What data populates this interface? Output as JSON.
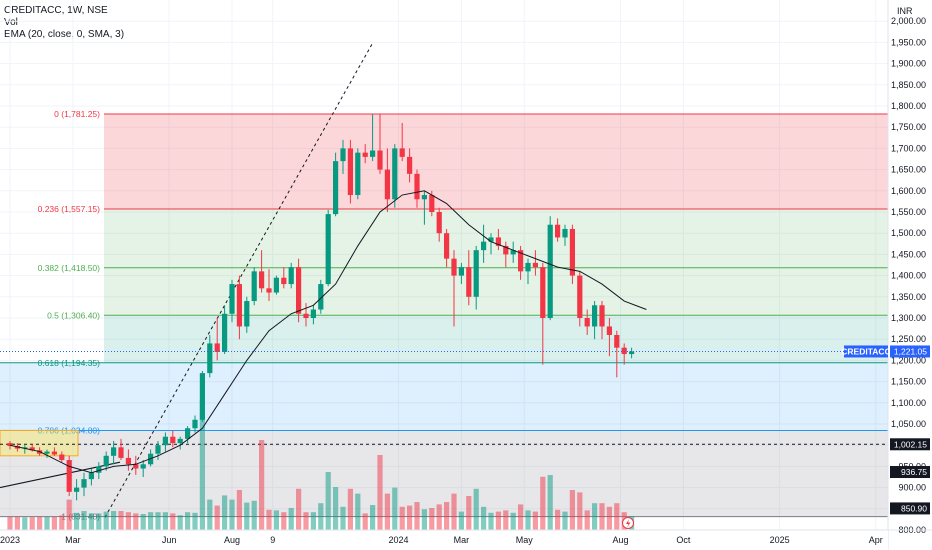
{
  "legend": {
    "symbol_line": "CREDITACC, 1W, NSE",
    "vol_line": "Vol",
    "ema_line": "EMA (20, close, 0, SMA, 3)"
  },
  "chart_data": {
    "type": "candlestick",
    "currency": "INR",
    "ylim": [
      800,
      2050
    ],
    "y_ticks": [
      800,
      850,
      900,
      950,
      1000,
      1050,
      1100,
      1150,
      1200,
      1250,
      1300,
      1350,
      1400,
      1450,
      1500,
      1550,
      1600,
      1650,
      1700,
      1750,
      1800,
      1850,
      1900,
      1950,
      2000
    ],
    "y_tick_labels": [
      "800.00",
      "850.00",
      "900.00",
      "950.00",
      "1,000.00",
      "1,050.00",
      "1,100.00",
      "1,150.00",
      "1,200.00",
      "1,250.00",
      "1,300.00",
      "1,350.00",
      "1,400.00",
      "1,450.00",
      "1,500.00",
      "1,550.00",
      "1,600.00",
      "1,650.00",
      "1,700.00",
      "1,750.00",
      "1,800.00",
      "1,850.00",
      "1,900.00",
      "1,950.00",
      "2,000.00"
    ],
    "x_ticks": [
      {
        "label": "2023",
        "week": 0
      },
      {
        "label": "Mar",
        "week": 8.5
      },
      {
        "label": "Jun",
        "week": 21.5
      },
      {
        "label": "Aug",
        "week": 30
      },
      {
        "label": "9",
        "week": 35.5
      },
      {
        "label": "2024",
        "week": 52.5
      },
      {
        "label": "Mar",
        "week": 61
      },
      {
        "label": "May",
        "week": 69.5
      },
      {
        "label": "Aug",
        "week": 82.5
      },
      {
        "label": "Oct",
        "week": 91
      },
      {
        "label": "2025",
        "week": 104
      },
      {
        "label": "Apr",
        "week": 117
      }
    ],
    "fib_levels": [
      {
        "label": "0 (1,781.25)",
        "value": 1781.25,
        "color": "#f23645"
      },
      {
        "label": "0.236 (1,557.15)",
        "value": 1557.15,
        "color": "#f23645"
      },
      {
        "label": "0.382 (1,418.50)",
        "value": 1418.5,
        "color": "#4caf50"
      },
      {
        "label": "0.5 (1,306.40)",
        "value": 1306.4,
        "color": "#4caf50"
      },
      {
        "label": "0.618 (1,194.35)",
        "value": 1194.35,
        "color": "#089981"
      },
      {
        "label": "0.786 (1,034.80)",
        "value": 1034.8,
        "color": "#2196f3"
      },
      {
        "label": "1 (831.40)",
        "value": 831.4,
        "color": "#787b86"
      }
    ],
    "price_labels": [
      {
        "text": "CREDITACC",
        "value": 1221.05,
        "bg": "#2962ff",
        "color": "#ffffff"
      },
      {
        "text": "1,221.05",
        "value": 1221.05,
        "bg": "#2962ff",
        "color": "#ffffff"
      },
      {
        "text": "1,002.15",
        "value": 1002.15,
        "bg": "#131722",
        "color": "#ffffff"
      },
      {
        "text": "936.75",
        "value": 936.75,
        "bg": "#131722",
        "color": "#ffffff"
      },
      {
        "text": "850.90",
        "value": 850.9,
        "bg": "#131722",
        "color": "#ffffff"
      }
    ],
    "horizontal_dashed": [
      1002.15
    ],
    "trendline": {
      "from": {
        "week": 0,
        "value": 830
      },
      "to": {
        "week": 45,
        "value": 1950
      }
    },
    "ohlc": [
      [
        1005,
        1010,
        990,
        998
      ],
      [
        998,
        1005,
        985,
        992
      ],
      [
        992,
        1000,
        980,
        995
      ],
      [
        995,
        1002,
        985,
        988
      ],
      [
        988,
        995,
        975,
        980
      ],
      [
        980,
        990,
        970,
        985
      ],
      [
        985,
        995,
        975,
        978
      ],
      [
        978,
        985,
        960,
        965
      ],
      [
        965,
        975,
        880,
        890
      ],
      [
        890,
        920,
        870,
        900
      ],
      [
        900,
        935,
        880,
        920
      ],
      [
        920,
        945,
        905,
        935
      ],
      [
        935,
        960,
        920,
        950
      ],
      [
        950,
        985,
        940,
        975
      ],
      [
        975,
        1010,
        955,
        995
      ],
      [
        995,
        1015,
        965,
        970
      ],
      [
        970,
        990,
        940,
        955
      ],
      [
        955,
        975,
        930,
        945
      ],
      [
        945,
        965,
        925,
        955
      ],
      [
        955,
        990,
        950,
        980
      ],
      [
        980,
        1010,
        965,
        1000
      ],
      [
        1000,
        1030,
        985,
        1020
      ],
      [
        1020,
        1035,
        995,
        1005
      ],
      [
        1005,
        1020,
        990,
        1015
      ],
      [
        1015,
        1045,
        1005,
        1040
      ],
      [
        1040,
        1070,
        1030,
        1060
      ],
      [
        1060,
        1175,
        1055,
        1170
      ],
      [
        1170,
        1260,
        1160,
        1240
      ],
      [
        1240,
        1300,
        1200,
        1220
      ],
      [
        1220,
        1330,
        1215,
        1310
      ],
      [
        1310,
        1390,
        1290,
        1380
      ],
      [
        1380,
        1400,
        1250,
        1280
      ],
      [
        1280,
        1350,
        1265,
        1340
      ],
      [
        1340,
        1420,
        1330,
        1410
      ],
      [
        1410,
        1460,
        1360,
        1370
      ],
      [
        1370,
        1415,
        1340,
        1360
      ],
      [
        1360,
        1400,
        1355,
        1395
      ],
      [
        1395,
        1420,
        1370,
        1380
      ],
      [
        1380,
        1430,
        1370,
        1420
      ],
      [
        1420,
        1440,
        1290,
        1310
      ],
      [
        1310,
        1335,
        1280,
        1300
      ],
      [
        1300,
        1330,
        1285,
        1320
      ],
      [
        1320,
        1390,
        1310,
        1380
      ],
      [
        1380,
        1555,
        1375,
        1545
      ],
      [
        1545,
        1690,
        1540,
        1670
      ],
      [
        1670,
        1720,
        1640,
        1700
      ],
      [
        1700,
        1720,
        1570,
        1590
      ],
      [
        1590,
        1700,
        1580,
        1690
      ],
      [
        1690,
        1710,
        1665,
        1680
      ],
      [
        1680,
        1780,
        1670,
        1695
      ],
      [
        1695,
        1780,
        1640,
        1650
      ],
      [
        1650,
        1700,
        1550,
        1580
      ],
      [
        1580,
        1710,
        1560,
        1700
      ],
      [
        1700,
        1760,
        1670,
        1680
      ],
      [
        1680,
        1700,
        1620,
        1640
      ],
      [
        1640,
        1650,
        1560,
        1580
      ],
      [
        1580,
        1600,
        1520,
        1590
      ],
      [
        1590,
        1600,
        1540,
        1550
      ],
      [
        1550,
        1560,
        1480,
        1500
      ],
      [
        1500,
        1510,
        1420,
        1440
      ],
      [
        1440,
        1460,
        1280,
        1400
      ],
      [
        1400,
        1430,
        1380,
        1420
      ],
      [
        1420,
        1460,
        1330,
        1350
      ],
      [
        1350,
        1470,
        1320,
        1460
      ],
      [
        1460,
        1520,
        1430,
        1480
      ],
      [
        1480,
        1500,
        1450,
        1490
      ],
      [
        1490,
        1510,
        1460,
        1470
      ],
      [
        1470,
        1480,
        1420,
        1450
      ],
      [
        1450,
        1480,
        1430,
        1460
      ],
      [
        1460,
        1470,
        1390,
        1410
      ],
      [
        1410,
        1440,
        1380,
        1430
      ],
      [
        1430,
        1460,
        1400,
        1420
      ],
      [
        1420,
        1430,
        1190,
        1300
      ],
      [
        1300,
        1540,
        1295,
        1520
      ],
      [
        1520,
        1535,
        1480,
        1490
      ],
      [
        1490,
        1520,
        1470,
        1510
      ],
      [
        1510,
        1520,
        1380,
        1400
      ],
      [
        1400,
        1410,
        1280,
        1300
      ],
      [
        1300,
        1320,
        1260,
        1280
      ],
      [
        1280,
        1340,
        1250,
        1330
      ],
      [
        1330,
        1340,
        1250,
        1280
      ],
      [
        1280,
        1300,
        1210,
        1260
      ],
      [
        1260,
        1270,
        1160,
        1230
      ],
      [
        1230,
        1240,
        1190,
        1215
      ],
      [
        1215,
        1230,
        1205,
        1221.05
      ]
    ],
    "ema": [
      [
        0,
        1000
      ],
      [
        4,
        985
      ],
      [
        8,
        950
      ],
      [
        11,
        935
      ],
      [
        14,
        950
      ],
      [
        17,
        955
      ],
      [
        20,
        975
      ],
      [
        23,
        1000
      ],
      [
        26,
        1040
      ],
      [
        29,
        1120
      ],
      [
        32,
        1200
      ],
      [
        35,
        1270
      ],
      [
        38,
        1310
      ],
      [
        41,
        1330
      ],
      [
        44,
        1380
      ],
      [
        47,
        1470
      ],
      [
        50,
        1550
      ],
      [
        53,
        1590
      ],
      [
        56,
        1600
      ],
      [
        59,
        1570
      ],
      [
        62,
        1520
      ],
      [
        65,
        1480
      ],
      [
        68,
        1460
      ],
      [
        71,
        1440
      ],
      [
        74,
        1420
      ],
      [
        77,
        1410
      ],
      [
        80,
        1380
      ],
      [
        83,
        1340
      ],
      [
        86,
        1320
      ]
    ],
    "volume": [
      [
        1,
        1
      ],
      [
        2,
        0
      ],
      [
        3,
        1
      ],
      [
        4,
        0
      ],
      [
        5,
        1
      ],
      [
        6,
        0
      ],
      [
        7,
        1
      ],
      [
        8,
        0
      ],
      [
        9,
        1
      ],
      [
        10,
        1
      ],
      [
        11,
        0
      ],
      [
        12,
        1
      ],
      [
        13,
        0
      ],
      [
        14,
        1
      ],
      [
        15,
        0
      ],
      [
        16,
        1
      ],
      [
        17,
        0
      ],
      [
        18,
        1
      ],
      [
        19,
        0
      ],
      [
        20,
        1
      ],
      [
        21,
        1
      ],
      [
        22,
        1
      ],
      [
        23,
        0
      ],
      [
        24,
        0
      ],
      [
        25,
        1
      ],
      [
        26,
        0
      ],
      [
        27,
        1
      ],
      [
        28,
        1
      ],
      [
        29,
        1
      ],
      [
        30,
        0
      ],
      [
        31,
        1
      ],
      [
        32,
        0
      ],
      [
        33,
        1
      ],
      [
        34,
        0
      ],
      [
        35,
        1
      ],
      [
        36,
        1
      ],
      [
        37,
        0
      ],
      [
        38,
        1
      ],
      [
        39,
        0
      ],
      [
        40,
        1
      ],
      [
        41,
        1
      ],
      [
        42,
        0
      ],
      [
        43,
        1
      ],
      [
        44,
        0
      ],
      [
        45,
        1
      ],
      [
        46,
        1
      ],
      [
        47,
        0
      ],
      [
        48,
        1
      ],
      [
        49,
        0
      ],
      [
        50,
        1
      ],
      [
        51,
        0
      ],
      [
        52,
        1
      ],
      [
        53,
        0
      ],
      [
        54,
        1
      ],
      [
        55,
        0
      ],
      [
        56,
        1
      ],
      [
        57,
        0
      ],
      [
        58,
        0
      ],
      [
        59,
        1
      ],
      [
        60,
        0
      ],
      [
        61,
        1
      ],
      [
        62,
        0
      ],
      [
        63,
        1
      ],
      [
        64,
        0
      ],
      [
        65,
        1
      ],
      [
        66,
        0
      ],
      [
        67,
        1
      ],
      [
        68,
        0
      ],
      [
        69,
        1
      ],
      [
        70,
        0
      ],
      [
        71,
        1
      ],
      [
        72,
        0
      ],
      [
        73,
        1
      ],
      [
        74,
        0
      ],
      [
        75,
        1
      ],
      [
        76,
        0
      ],
      [
        77,
        1
      ],
      [
        78,
        0
      ],
      [
        79,
        1
      ],
      [
        80,
        0
      ],
      [
        81,
        1
      ],
      [
        82,
        0
      ],
      [
        83,
        1
      ],
      [
        84,
        0
      ],
      [
        85,
        1
      ]
    ]
  }
}
